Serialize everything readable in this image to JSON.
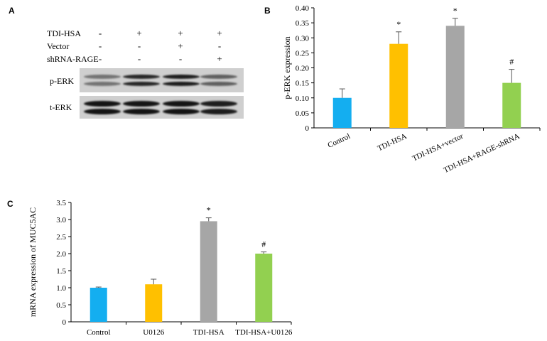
{
  "panels": {
    "a_label": "A",
    "b_label": "B",
    "c_label": "C"
  },
  "blot": {
    "rows": [
      {
        "label": "TDI-HSA",
        "signs": [
          "-",
          "+",
          "+",
          "+"
        ]
      },
      {
        "label": "Vector",
        "signs": [
          "-",
          "-",
          "+",
          "-"
        ]
      },
      {
        "label": "shRNA-RAGE",
        "signs": [
          "-",
          "-",
          "-",
          "+"
        ]
      }
    ],
    "bands": [
      {
        "label": "p-ERK",
        "intensities": [
          0.45,
          0.85,
          0.9,
          0.55
        ]
      },
      {
        "label": "t-ERK",
        "intensities": [
          0.95,
          0.95,
          0.95,
          0.9
        ]
      }
    ]
  },
  "chart_data": [
    {
      "type": "bar",
      "panel": "B",
      "categories": [
        "Control",
        "TDI-HSA",
        "TDI-HSA+vector",
        "TDI-HSA+RAGE-shRNA"
      ],
      "values": [
        0.1,
        0.28,
        0.34,
        0.15
      ],
      "errors": [
        0.03,
        0.04,
        0.025,
        0.045
      ],
      "annotations": [
        "",
        "*",
        "*",
        "#"
      ],
      "colors": [
        "#14aef0",
        "#ffc000",
        "#a6a6a6",
        "#92d050"
      ],
      "ylabel": "p-ERK expression",
      "xlabel": "",
      "ylim": [
        0,
        0.4
      ],
      "yticks": [
        "0",
        "0.05",
        "0.10",
        "0.15",
        "0.20",
        "0.25",
        "0.30",
        "0.35",
        "0.40"
      ],
      "category_label_rotation": "diagonal",
      "grid": false
    },
    {
      "type": "bar",
      "panel": "C",
      "categories": [
        "Control",
        "U0126",
        "TDI-HSA",
        "TDI-HSA+U0126"
      ],
      "values": [
        1.0,
        1.1,
        2.95,
        2.0
      ],
      "errors": [
        0.02,
        0.15,
        0.1,
        0.05
      ],
      "annotations": [
        "",
        "",
        "*",
        "#"
      ],
      "colors": [
        "#14aef0",
        "#ffc000",
        "#a6a6a6",
        "#92d050"
      ],
      "ylabel": "mRNA expression of MUC5AC",
      "xlabel": "",
      "ylim": [
        0,
        3.5
      ],
      "yticks": [
        "0",
        "0.5",
        "1.0",
        "1.5",
        "2.0",
        "2.5",
        "3.0",
        "3.5"
      ],
      "grid": false
    }
  ]
}
